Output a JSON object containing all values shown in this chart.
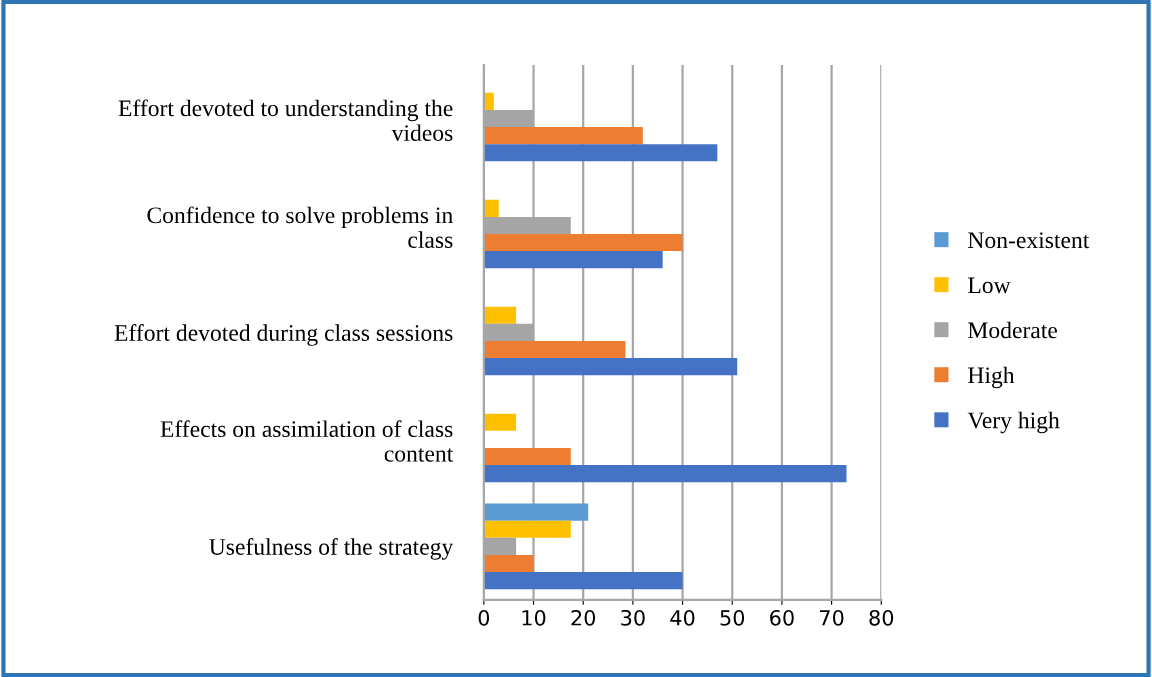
{
  "chart_data": {
    "type": "bar",
    "orientation": "horizontal",
    "categories": [
      "Effort devoted to understanding the videos",
      "Confidence to solve problems in class",
      "Effort devoted during class sessions",
      "Effects on assimilation of class content",
      "Usefulness of the strategy"
    ],
    "series": [
      {
        "name": "Non-existent",
        "color": "#5b9bd5",
        "values": [
          0,
          0,
          0,
          0,
          21
        ]
      },
      {
        "name": "Low",
        "color": "#ffc000",
        "values": [
          2,
          3,
          6.5,
          6.5,
          17.5
        ]
      },
      {
        "name": "Moderate",
        "color": "#a5a5a5",
        "values": [
          10,
          17.5,
          10,
          0,
          6.5
        ]
      },
      {
        "name": "High",
        "color": "#ed7d31",
        "values": [
          32,
          40,
          28.5,
          17.5,
          10
        ]
      },
      {
        "name": "Very high",
        "color": "#4472c4",
        "values": [
          47,
          36,
          51,
          73,
          40
        ]
      }
    ],
    "xlim": [
      0,
      80
    ],
    "xticks": [
      0,
      10,
      20,
      30,
      40,
      50,
      60,
      70,
      80
    ],
    "grid": "x",
    "legend": "right"
  }
}
